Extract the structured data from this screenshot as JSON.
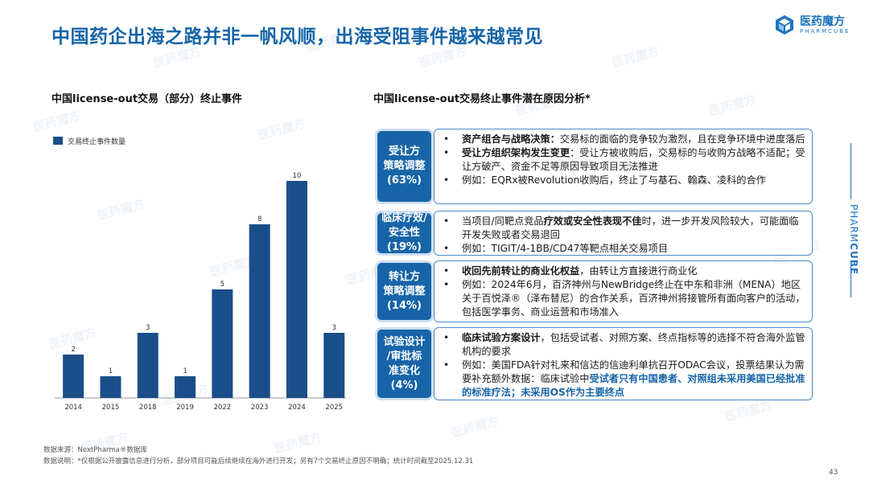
{
  "title": "中国药企出海之路并非一帆风顺，出海受阻事件越来越常见",
  "logo": {
    "name": "医药魔方",
    "sub": "PHARMCUBE"
  },
  "left_subtitle": "中国license-out交易（部分）终止事件",
  "right_subtitle": "中国license-out交易终止事件潜在原因分析*",
  "chart_data": {
    "type": "bar",
    "categories": [
      "2014",
      "2015",
      "2018",
      "2019",
      "2022",
      "2023",
      "2024",
      "2025"
    ],
    "series": [
      {
        "name": "交易终止事件数量",
        "values": [
          2,
          1,
          3,
          1,
          5,
          8,
          10,
          3
        ]
      }
    ],
    "legend_position": "top-left",
    "ylim": [
      0,
      10
    ],
    "color": "#1a4e8a",
    "data_labels": true,
    "grid": false
  },
  "reasons": [
    {
      "label": [
        "受让方",
        "策略调整",
        "(63%)"
      ],
      "items": [
        {
          "bold": "资产组合与战略决策：",
          "text": "交易标的面临的竞争较为激烈，且在竞争环境中进度落后"
        },
        {
          "bold": "受让方组织架构发生变更",
          "text": "：受让方被收购后，交易标的与收购方战略不适配；受让方破产、资金不足等原因导致项目无法推进"
        },
        {
          "bold": "",
          "text": "例如：EQRx被Revolution收购后，终止了与基石、翰森、凌科的合作"
        }
      ]
    },
    {
      "label": [
        "临床疗效/",
        "安全性",
        "(19%)"
      ],
      "items": [
        {
          "pre": "当项目/同靶点竞品",
          "bold": "疗效或安全性表现不佳",
          "text": "时，进一步开发风险较大，可能面临开发失败或者交易退回"
        },
        {
          "bold": "",
          "text": "例如：TIGIT/4-1BB/CD47等靶点相关交易项目"
        }
      ]
    },
    {
      "label": [
        "转让方",
        "策略调整",
        "(14%)"
      ],
      "items": [
        {
          "bold": "收回先前转让的商业化权益",
          "text": "，由转让方直接进行商业化"
        },
        {
          "bold": "",
          "text": "例如：2024年6月，百济神州与NewBridge终止在中东和非洲（MENA）地区关于百悦泽®（泽布替尼）的合作关系，百济神州将接管所有面向客户的活动，包括医学事务、商业运营和市场准入"
        }
      ]
    },
    {
      "label": [
        "试验设计",
        "/审批标",
        "准变化",
        "(4%)"
      ],
      "items": [
        {
          "bold": "临床试验方案设计",
          "text": "，包括受试者、对照方案、终点指标等的选择不符合海外监管机构的要求"
        },
        {
          "bold": "",
          "text": "例如：美国FDA针对礼来和信达的信迪利单抗召开ODAC会议，投票结果认为需要补充额外数据：临床试验中",
          "highlight": "受试者只有中国患者、对照组未采用美国已经批准的标准疗法；未采用OS作为主要终点"
        }
      ]
    }
  ],
  "side_text": {
    "normal": "PHARM",
    "bold": "CUBE"
  },
  "source": "数据来源：NextPharma®数据库",
  "note": "数据说明：*仅根据公开披露信息进行分析，部分项目可能后续继续在海外进行开发；另有7个交易终止原因不明确；统计时间截至2025.12.31",
  "page_number": "43",
  "watermark": "医药魔方"
}
